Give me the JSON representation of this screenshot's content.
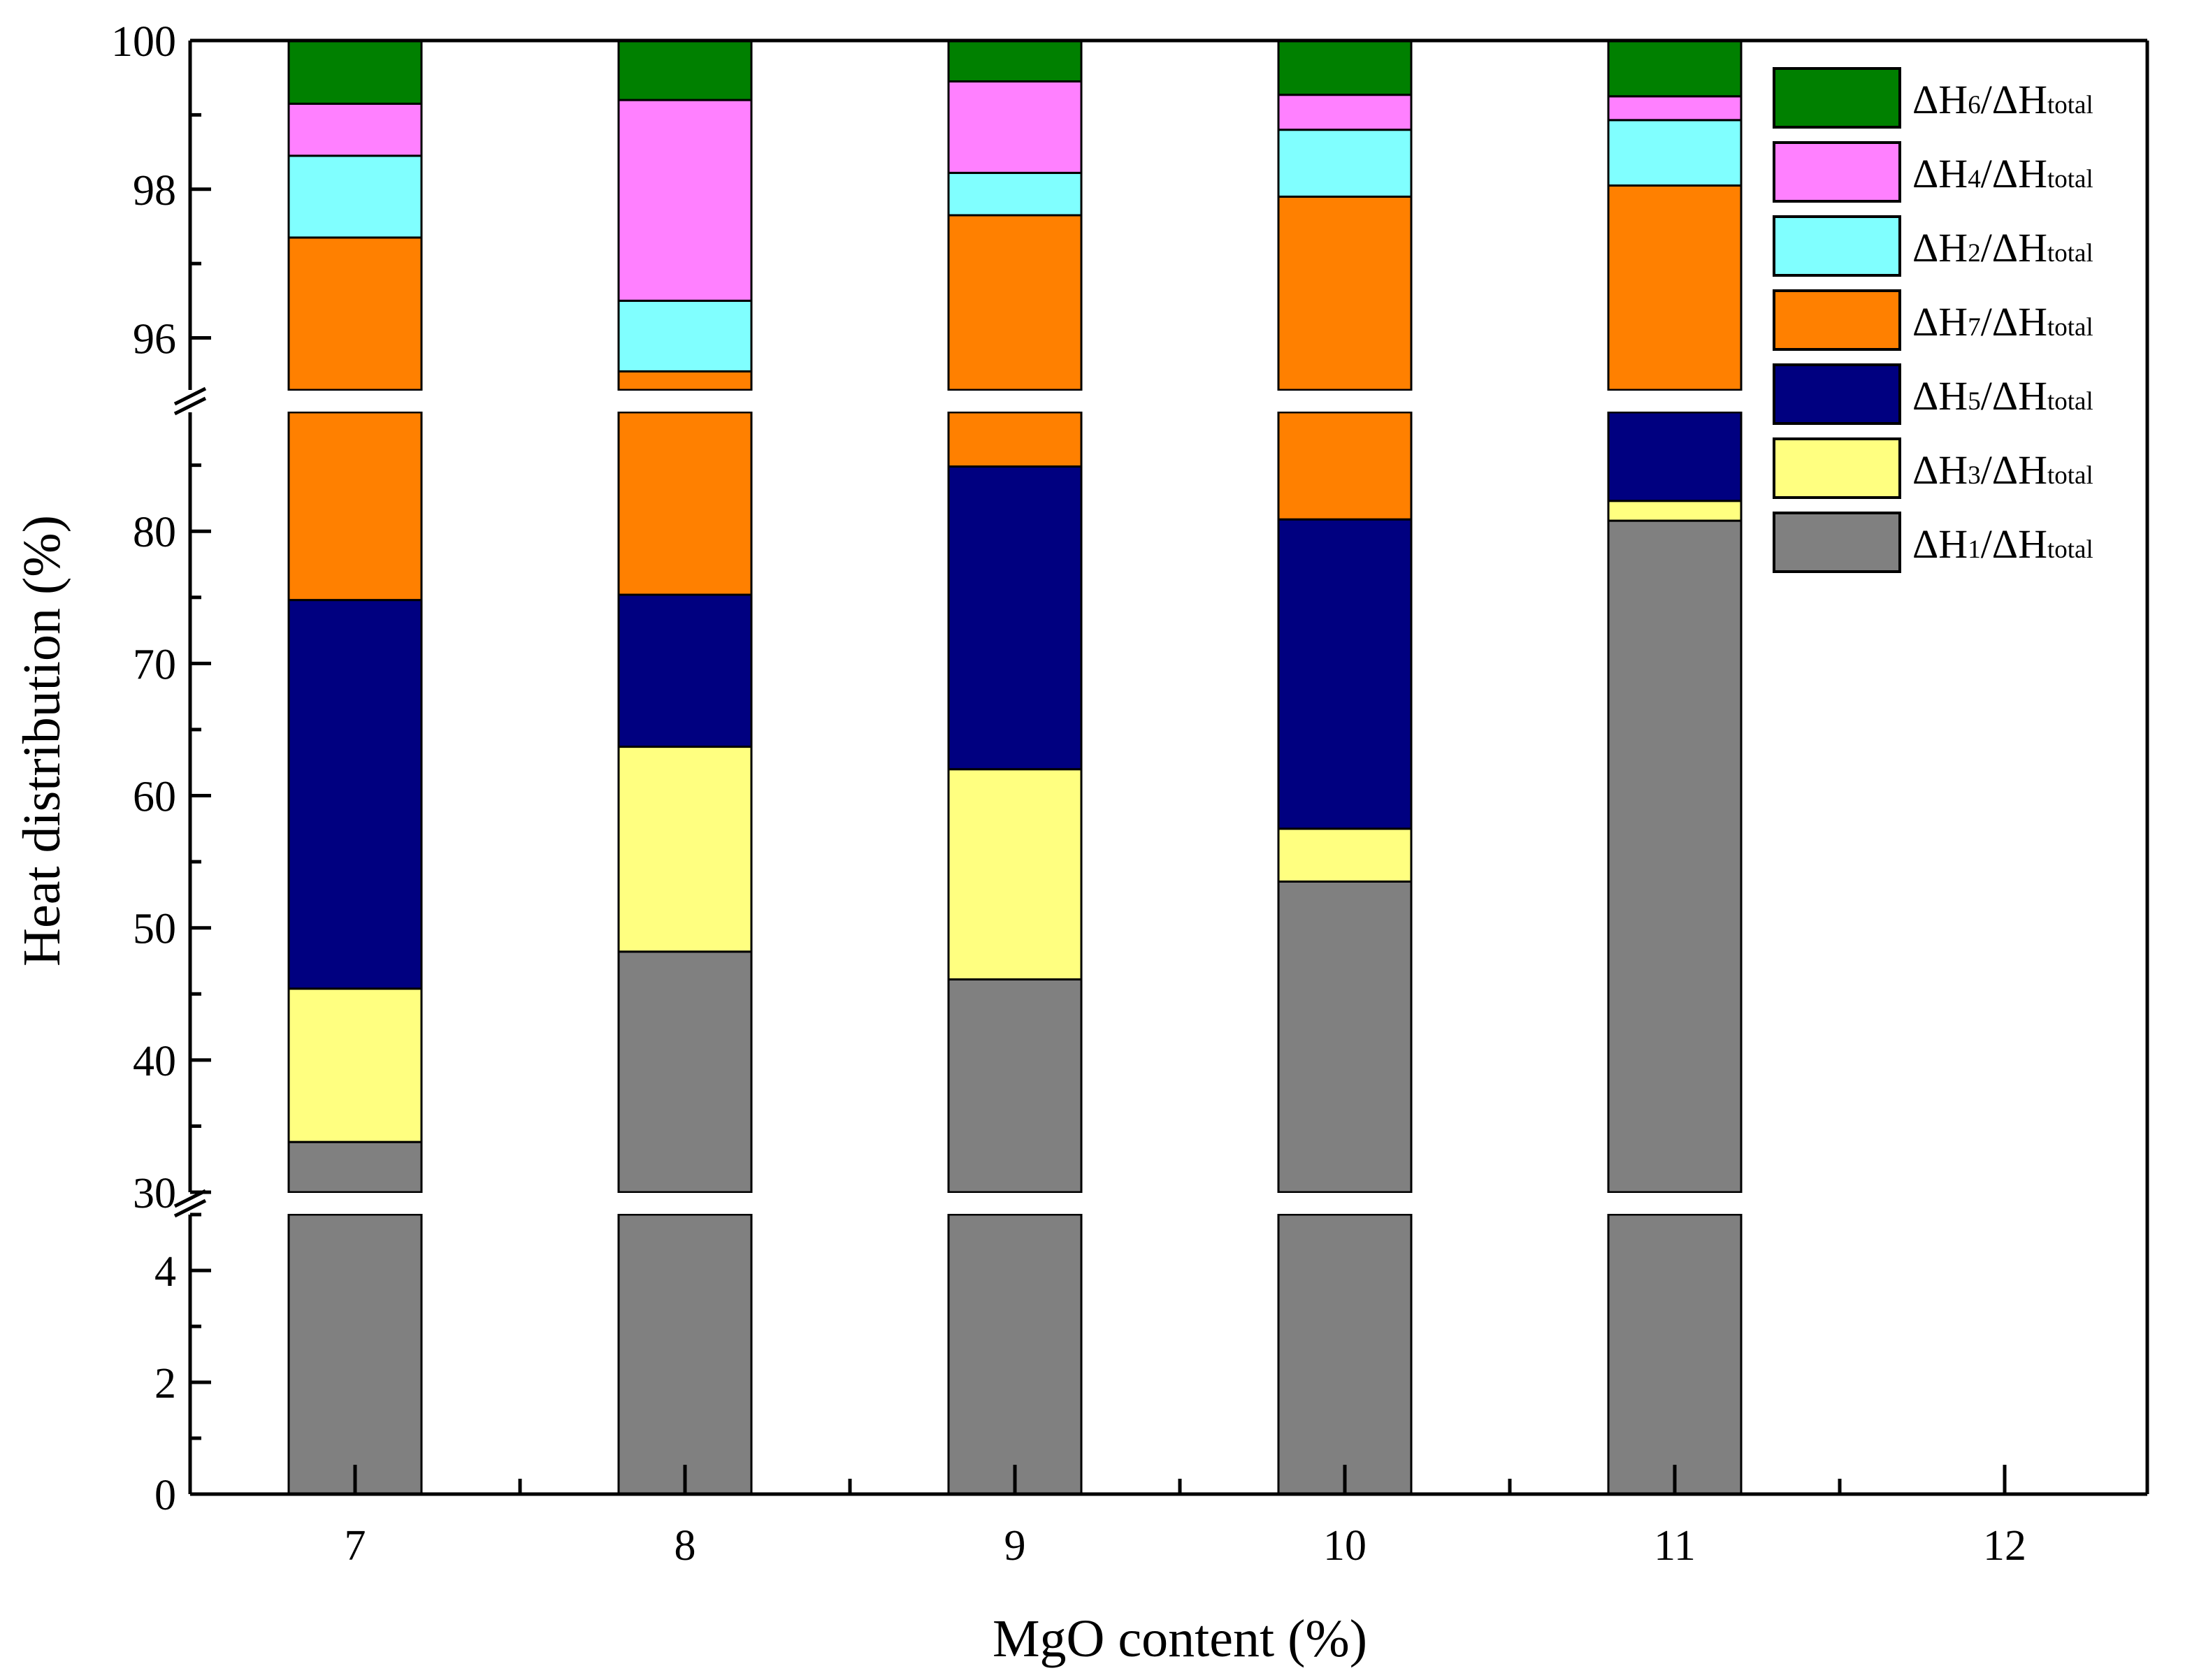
{
  "chart_data": {
    "type": "bar",
    "stacked": true,
    "broken_y_axis": true,
    "xlabel": "MgO content (%)",
    "ylabel": "Heat distribution (%)",
    "categories": [
      "7",
      "8",
      "9",
      "10",
      "11"
    ],
    "x_ticks": [
      "7",
      "8",
      "9",
      "10",
      "11",
      "12"
    ],
    "y_segments": [
      {
        "range": [
          0,
          5
        ],
        "ticks": [
          "0",
          "2",
          "4"
        ]
      },
      {
        "range": [
          30,
          89
        ],
        "ticks": [
          "30",
          "40",
          "50",
          "60",
          "70",
          "80"
        ]
      },
      {
        "range": [
          95.3,
          100
        ],
        "ticks": [
          "96",
          "98",
          "100"
        ]
      }
    ],
    "series": [
      {
        "name": "ΔH1/ΔHtotal",
        "sub": "1",
        "color": "#808080",
        "values": [
          33.8,
          48.2,
          46.1,
          53.5,
          80.8
        ]
      },
      {
        "name": "ΔH3/ΔHtotal",
        "sub": "3",
        "color": "#FFFF80",
        "values": [
          11.6,
          15.5,
          15.9,
          4.0,
          1.5
        ]
      },
      {
        "name": "ΔH5/ΔHtotal",
        "sub": "5",
        "color": "#000080",
        "values": [
          29.4,
          11.5,
          22.9,
          23.4,
          8.2
        ]
      },
      {
        "name": "ΔH7/ΔHtotal",
        "sub": "7",
        "color": "#FF8000",
        "values": [
          22.55,
          20.35,
          12.75,
          17.0,
          7.55
        ]
      },
      {
        "name": "ΔH2/ΔHtotal",
        "sub": "2",
        "color": "#80FFFF",
        "values": [
          1.1,
          0.95,
          0.57,
          0.9,
          0.88
        ]
      },
      {
        "name": "ΔH4/ΔHtotal",
        "sub": "4",
        "color": "#FF80FF",
        "values": [
          0.7,
          2.7,
          1.23,
          0.47,
          0.32
        ]
      },
      {
        "name": "ΔH6/ΔHtotal",
        "sub": "6",
        "color": "#008000",
        "values": [
          0.85,
          0.85,
          0.57,
          0.73,
          0.75
        ]
      }
    ],
    "legend": {
      "position": "top-right",
      "order": [
        "ΔH6/ΔHtotal",
        "ΔH4/ΔHtotal",
        "ΔH2/ΔHtotal",
        "ΔH7/ΔHtotal",
        "ΔH5/ΔHtotal",
        "ΔH3/ΔHtotal",
        "ΔH1/ΔHtotal"
      ]
    },
    "grid": false
  }
}
